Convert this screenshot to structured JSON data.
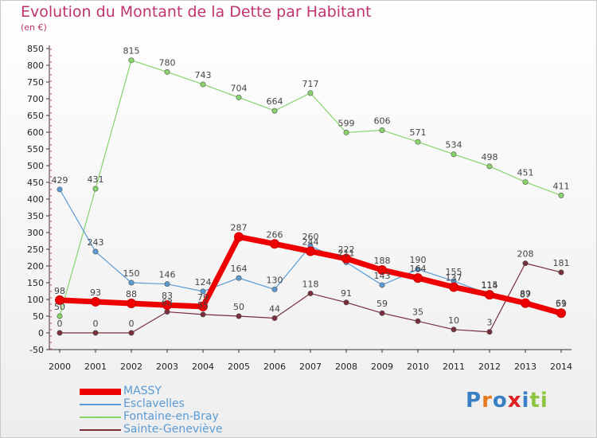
{
  "chart_data": {
    "type": "line",
    "title": "Evolution du Montant de la Dette par Habitant",
    "subtitle": "(en €)",
    "categories": [
      "2000",
      "2001",
      "2002",
      "2003",
      "2004",
      "2005",
      "2006",
      "2007",
      "2008",
      "2009",
      "2010",
      "2011",
      "2012",
      "2013",
      "2014"
    ],
    "ylim": [
      -50,
      850
    ],
    "yticks": [
      -50,
      0,
      50,
      100,
      150,
      200,
      250,
      300,
      350,
      400,
      450,
      500,
      550,
      600,
      650,
      700,
      750,
      800,
      850
    ],
    "grid": false,
    "legend_position": "bottom-left",
    "series": [
      {
        "name": "Sainte-Geneviève",
        "color": "#7a2d3a",
        "values": [
          0,
          0,
          0,
          63,
          55,
          50,
          44,
          118,
          91,
          59,
          35,
          10,
          3,
          208,
          181
        ]
      },
      {
        "name": "Fontaine-en-Bray",
        "color": "#88d36a",
        "values": [
          50,
          431,
          815,
          780,
          743,
          704,
          664,
          717,
          599,
          606,
          571,
          534,
          498,
          451,
          411
        ]
      },
      {
        "name": "Esclavelles",
        "color": "#5a9bd5",
        "values": [
          429,
          243,
          150,
          146,
          124,
          164,
          130,
          260,
          211,
          143,
          190,
          155,
          115,
          87,
          61
        ]
      },
      {
        "name": "MASSY",
        "color": "#ee0000",
        "values": [
          98,
          93,
          88,
          83,
          79,
          287,
          266,
          244,
          222,
          188,
          164,
          137,
          114,
          89,
          59
        ]
      }
    ]
  },
  "legend": {
    "items": [
      {
        "name": "MASSY",
        "color": "#ee0000"
      },
      {
        "name": "Esclavelles",
        "color": "#5a9bd5"
      },
      {
        "name": "Fontaine-en-Bray",
        "color": "#88d36a"
      },
      {
        "name": "Sainte-Geneviève",
        "color": "#7a2d3a"
      }
    ]
  },
  "logo": {
    "letters": [
      "P",
      "r",
      "o",
      "x",
      "i",
      "t",
      "i"
    ],
    "colors": [
      "#3a7fc4",
      "#e87a1e",
      "#3a7fc4",
      "#e02020",
      "#3a7fc4",
      "#8cc63f",
      "#8cc63f"
    ]
  }
}
